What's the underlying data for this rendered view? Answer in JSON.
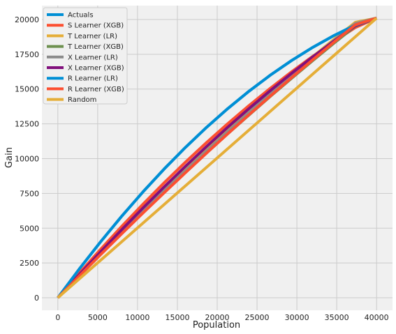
{
  "chart_data": {
    "type": "line",
    "title": "",
    "xlabel": "Population",
    "ylabel": "Gain",
    "xlim": [
      -2000,
      42000
    ],
    "ylim": [
      -900,
      21000
    ],
    "xticks": [
      0,
      5000,
      10000,
      15000,
      20000,
      25000,
      30000,
      35000,
      40000
    ],
    "yticks": [
      0,
      2500,
      5000,
      7500,
      10000,
      12500,
      15000,
      17500,
      20000
    ],
    "grid": true,
    "legend_position": "top-left",
    "x_max": 40000,
    "y_end": 20100,
    "series": [
      {
        "name": "Actuals",
        "color": "#008fd5",
        "values": [
          0,
          2050,
          4000,
          5850,
          7600,
          9250,
          10800,
          12250,
          13600,
          14850,
          16000,
          17050,
          18000,
          18850,
          19600,
          20100
        ]
      },
      {
        "name": "S Learner (XGB)",
        "color": "#fc4f30",
        "values": [
          0,
          1750,
          3460,
          5120,
          6720,
          8260,
          9740,
          11160,
          12520,
          13820,
          15060,
          16240,
          17360,
          18420,
          19420,
          20100
        ]
      },
      {
        "name": "T Learner (LR)",
        "color": "#e5ae38",
        "values": [
          0,
          1600,
          3180,
          4730,
          6250,
          7740,
          9200,
          10630,
          12030,
          13400,
          14740,
          16050,
          17330,
          18580,
          19800,
          20100
        ]
      },
      {
        "name": "T Learner (XGB)",
        "color": "#6d904f",
        "values": [
          0,
          1550,
          3100,
          4620,
          6110,
          7570,
          9000,
          10410,
          11790,
          13140,
          14470,
          15770,
          17050,
          18300,
          19520,
          20100
        ]
      },
      {
        "name": "X Learner (LR)",
        "color": "#8b8b8b",
        "values": [
          0,
          1580,
          3150,
          4690,
          6200,
          7680,
          9130,
          10550,
          11950,
          13320,
          14660,
          15970,
          17250,
          18500,
          19720,
          20100
        ]
      },
      {
        "name": "X Learner (XGB)",
        "color": "#810f7c",
        "values": [
          0,
          1650,
          3280,
          4880,
          6440,
          7960,
          9440,
          10870,
          12260,
          13600,
          14890,
          16130,
          17320,
          18460,
          19550,
          20100
        ]
      },
      {
        "name": "R Learner (LR)",
        "color": "#008fd5",
        "values": [
          0,
          2050,
          4000,
          5850,
          7600,
          9250,
          10800,
          12250,
          13600,
          14850,
          16000,
          17050,
          18000,
          18850,
          19600,
          20100
        ]
      },
      {
        "name": "R Learner (XGB)",
        "color": "#fc4f30",
        "values": [
          0,
          1550,
          3080,
          4590,
          6080,
          7540,
          8980,
          10400,
          11790,
          13160,
          14500,
          15820,
          17110,
          18380,
          19620,
          20100
        ]
      },
      {
        "name": "Random",
        "color": "#e5ae38",
        "values": [
          0,
          1340,
          2680,
          4020,
          5360,
          6700,
          8040,
          9380,
          10720,
          12060,
          13400,
          14740,
          16080,
          17420,
          18760,
          20100
        ]
      }
    ]
  }
}
